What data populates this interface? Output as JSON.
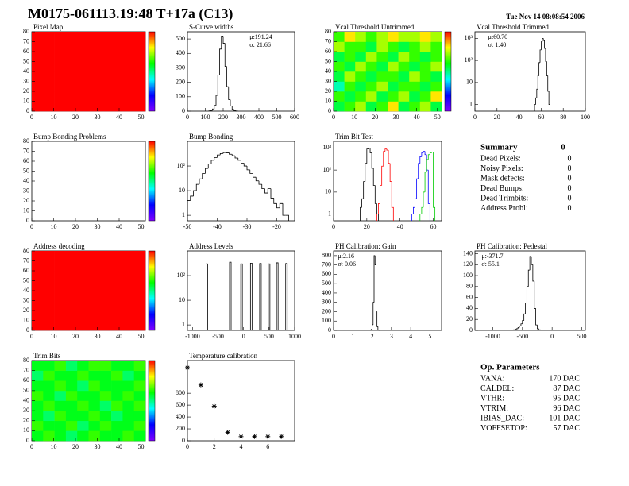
{
  "header": {
    "title": "M0175-061113.19:48 T+17a (C13)",
    "date": "Tue Nov 14 08:08:54 2006"
  },
  "chart_data": [
    {
      "type": "heatmap",
      "title": "Pixel Map",
      "xlim": [
        0,
        52
      ],
      "ylim": [
        0,
        80
      ],
      "xticks": [
        0,
        10,
        20,
        30,
        40,
        50
      ],
      "yticks": [
        0,
        10,
        20,
        30,
        40,
        50,
        60,
        70,
        80
      ],
      "zlim": [
        0,
        10
      ],
      "z": [
        [
          10,
          10,
          10,
          10,
          10
        ],
        [
          10,
          10,
          10,
          10,
          10
        ],
        [
          10,
          10,
          10,
          10,
          10
        ],
        [
          10,
          10,
          10,
          10,
          10
        ]
      ]
    },
    {
      "type": "hist",
      "title": "S-Curve widths",
      "xlim": [
        0,
        600
      ],
      "ylim": [
        0,
        550
      ],
      "xticks": [
        0,
        100,
        200,
        300,
        400,
        500,
        600
      ],
      "yticks": [
        0,
        100,
        200,
        300,
        400,
        500
      ],
      "stats": [
        "μ:191.24",
        "σ: 21.66"
      ],
      "series": [
        {
          "color": "#000000",
          "bins": [
            120,
            130,
            140,
            150,
            160,
            170,
            180,
            190,
            200,
            210,
            220,
            230,
            240,
            250,
            260,
            270,
            280
          ],
          "values": [
            2,
            5,
            15,
            40,
            110,
            250,
            430,
            520,
            470,
            310,
            170,
            80,
            35,
            12,
            4,
            1
          ]
        }
      ]
    },
    {
      "type": "heatmap",
      "title": "Vcal Threshold Untrimmed",
      "xlim": [
        0,
        52
      ],
      "ylim": [
        0,
        80
      ],
      "xticks": [
        0,
        10,
        20,
        30,
        40,
        50
      ],
      "yticks": [
        0,
        10,
        20,
        30,
        40,
        50,
        60,
        70,
        80
      ],
      "zlim": [
        0,
        10
      ],
      "z": [
        [
          5,
          6,
          7,
          5,
          6,
          8,
          5,
          6,
          7,
          5
        ],
        [
          6,
          5,
          6,
          7,
          5,
          6,
          7,
          5,
          6,
          8
        ],
        [
          4,
          6,
          5,
          6,
          7,
          5,
          6,
          6,
          5,
          6
        ],
        [
          5,
          7,
          6,
          5,
          6,
          6,
          5,
          7,
          6,
          5
        ],
        [
          6,
          5,
          7,
          6,
          5,
          7,
          6,
          5,
          6,
          7
        ],
        [
          5,
          6,
          5,
          7,
          6,
          5,
          7,
          6,
          5,
          6
        ],
        [
          7,
          6,
          6,
          5,
          7,
          6,
          5,
          6,
          7,
          6
        ],
        [
          6,
          8,
          7,
          6,
          7,
          8,
          7,
          7,
          8,
          7
        ]
      ]
    },
    {
      "type": "hist",
      "title": "Vcal Threshold Trimmed",
      "log": true,
      "xlim": [
        0,
        100
      ],
      "ylim": [
        0.5,
        2000
      ],
      "xticks": [
        0,
        20,
        40,
        60,
        80,
        100
      ],
      "yticks": [
        1,
        10,
        {
          "value": 100,
          "label": "10²"
        },
        {
          "value": 1000,
          "label": "10³"
        }
      ],
      "stats": [
        "μ:60.70",
        "σ: 1.40"
      ],
      "series": [
        {
          "color": "#000000",
          "bins": [
            54,
            55,
            56,
            57,
            58,
            59,
            60,
            61,
            62,
            63,
            64,
            65,
            66,
            67,
            68
          ],
          "values": [
            1,
            2,
            5,
            20,
            80,
            300,
            700,
            1000,
            800,
            350,
            90,
            20,
            4,
            1
          ]
        }
      ]
    },
    {
      "type": "heatmap",
      "title": "Bump Bonding Problems",
      "xlim": [
        0,
        52
      ],
      "ylim": [
        0,
        80
      ],
      "xticks": [
        0,
        10,
        20,
        30,
        40,
        50
      ],
      "yticks": [
        0,
        10,
        20,
        30,
        40,
        50,
        60,
        70,
        80
      ],
      "zlim": [
        0,
        10
      ],
      "z": [
        [
          0,
          0,
          0,
          0,
          0
        ],
        [
          0,
          0,
          0,
          0,
          0
        ],
        [
          0,
          0,
          0,
          0,
          0
        ],
        [
          0,
          0,
          0,
          0,
          0
        ]
      ]
    },
    {
      "type": "hist",
      "title": "Bump Bonding",
      "log": true,
      "xlim": [
        -50,
        -14
      ],
      "ylim": [
        0.6,
        1000
      ],
      "xticks": [
        -50,
        -40,
        -30,
        -20
      ],
      "yticks": [
        1,
        10,
        {
          "value": 100,
          "label": "10²"
        }
      ],
      "series": [
        {
          "color": "#000000",
          "bins": [
            -50,
            -49,
            -48,
            -47,
            -46,
            -45,
            -44,
            -43,
            -42,
            -41,
            -40,
            -39,
            -38,
            -37,
            -36,
            -35,
            -34,
            -33,
            -32,
            -31,
            -30,
            -29,
            -28,
            -27,
            -26,
            -25,
            -24,
            -23,
            -22,
            -21,
            -20,
            -19,
            -18,
            -17,
            -16
          ],
          "values": [
            4,
            6,
            10,
            18,
            30,
            50,
            80,
            120,
            170,
            220,
            280,
            320,
            350,
            340,
            300,
            260,
            210,
            170,
            130,
            100,
            70,
            50,
            35,
            25,
            18,
            12,
            8,
            12,
            5,
            3,
            2,
            3,
            1,
            1
          ]
        }
      ]
    },
    {
      "type": "hist",
      "title": "Trim Bit Test",
      "log": true,
      "xlim": [
        0,
        65
      ],
      "ylim": [
        0.5,
        2000
      ],
      "xticks": [
        0,
        20,
        40,
        60
      ],
      "yticks": [
        1,
        10,
        {
          "value": 100,
          "label": "10²"
        },
        {
          "value": 1000,
          "label": "10³"
        }
      ],
      "series": [
        {
          "color": "#000000",
          "bins": [
            16,
            17,
            18,
            19,
            20,
            21,
            22,
            23,
            24,
            25,
            26,
            27
          ],
          "values": [
            2,
            5,
            30,
            200,
            900,
            1000,
            600,
            120,
            20,
            3,
            1
          ]
        },
        {
          "color": "#ff0000",
          "bins": [
            26,
            27,
            28,
            29,
            30,
            31,
            32,
            33,
            34,
            35,
            36
          ],
          "values": [
            1,
            3,
            20,
            150,
            700,
            900,
            800,
            200,
            30,
            2
          ]
        },
        {
          "color": "#0000ff",
          "bins": [
            47,
            48,
            49,
            50,
            51,
            52,
            53,
            54,
            55,
            56,
            57,
            58
          ],
          "values": [
            1,
            2,
            5,
            40,
            200,
            400,
            600,
            700,
            500,
            100,
            3
          ]
        },
        {
          "color": "#00cc00",
          "bins": [
            52,
            53,
            54,
            55,
            56,
            57,
            58,
            59,
            60,
            61
          ],
          "values": [
            1,
            2,
            10,
            80,
            300,
            500,
            600,
            650,
            2
          ]
        }
      ]
    },
    {
      "type": "heatmap",
      "title": "Address decoding",
      "xlim": [
        0,
        52
      ],
      "ylim": [
        0,
        80
      ],
      "xticks": [
        0,
        10,
        20,
        30,
        40,
        50
      ],
      "yticks": [
        0,
        10,
        20,
        30,
        40,
        50,
        60,
        70,
        80
      ],
      "zlim": [
        0,
        10
      ],
      "z": [
        [
          10,
          10,
          10,
          10,
          10
        ],
        [
          10,
          10,
          10,
          10,
          10
        ],
        [
          10,
          10,
          10,
          10,
          10
        ],
        [
          10,
          10,
          10,
          10,
          10
        ]
      ]
    },
    {
      "type": "spike",
      "title": "Address Levels",
      "log": true,
      "xlim": [
        -1100,
        1000
      ],
      "ylim": [
        0.6,
        1000
      ],
      "xticks": [
        -1000,
        -500,
        0,
        500,
        1000
      ],
      "yticks": [
        1,
        10,
        {
          "value": 100,
          "label": "10²"
        }
      ],
      "x": [
        -720,
        -260,
        -40,
        150,
        330,
        500,
        660,
        840
      ],
      "values": [
        300,
        350,
        300,
        320,
        310,
        300,
        330,
        310
      ]
    },
    {
      "type": "hist",
      "title": "PH Calibration: Gain",
      "xlim": [
        0,
        5.6
      ],
      "ylim": [
        0,
        850
      ],
      "xticks": [
        0,
        1,
        2,
        3,
        4,
        5
      ],
      "yticks": [
        0,
        100,
        200,
        300,
        400,
        500,
        600,
        700,
        800
      ],
      "stats": [
        "μ:2.16",
        "σ: 0.06"
      ],
      "series": [
        {
          "color": "#000000",
          "bins": [
            1.9,
            1.95,
            2,
            2.05,
            2.1,
            2.15,
            2.2,
            2.25,
            2.3,
            2.35,
            2.4
          ],
          "values": [
            2,
            10,
            60,
            300,
            800,
            700,
            200,
            40,
            5,
            1
          ]
        }
      ]
    },
    {
      "type": "hist",
      "title": "PH Calibration: Pedestal",
      "xlim": [
        -1300,
        560
      ],
      "ylim": [
        0,
        145
      ],
      "xticks": [
        -1000,
        -500,
        0,
        500
      ],
      "yticks": [
        0,
        20,
        40,
        60,
        80,
        100,
        120,
        140
      ],
      "stats": [
        "μ:-371.7",
        "σ: 55.1"
      ],
      "series": [
        {
          "color": "#000000",
          "bins": [
            -650,
            -625,
            -600,
            -575,
            -550,
            -525,
            -500,
            -475,
            -450,
            -425,
            -400,
            -375,
            -350,
            -325,
            -300,
            -275,
            -250,
            -225,
            -200
          ],
          "values": [
            1,
            2,
            3,
            5,
            8,
            12,
            18,
            30,
            50,
            80,
            110,
            135,
            120,
            90,
            40,
            10,
            3,
            1
          ]
        }
      ]
    },
    {
      "type": "heatmap",
      "title": "Trim Bits",
      "xlim": [
        0,
        52
      ],
      "ylim": [
        0,
        80
      ],
      "xticks": [
        0,
        10,
        20,
        30,
        40,
        50
      ],
      "yticks": [
        0,
        10,
        20,
        30,
        40,
        50,
        60,
        70,
        80
      ],
      "zlim": [
        0,
        15
      ],
      "z": [
        [
          8,
          9,
          8,
          7,
          8,
          9,
          8,
          8,
          9,
          8
        ],
        [
          9,
          8,
          8,
          9,
          7,
          8,
          9,
          8,
          8,
          9
        ],
        [
          8,
          7,
          9,
          8,
          8,
          9,
          8,
          7,
          8,
          8
        ],
        [
          8,
          9,
          8,
          8,
          9,
          8,
          7,
          9,
          8,
          9
        ],
        [
          9,
          8,
          7,
          9,
          8,
          8,
          9,
          8,
          9,
          8
        ],
        [
          8,
          8,
          9,
          8,
          7,
          9,
          8,
          8,
          8,
          9
        ],
        [
          7,
          9,
          8,
          8,
          9,
          8,
          8,
          9,
          7,
          8
        ],
        [
          8,
          8,
          9,
          7,
          8,
          9,
          9,
          8,
          8,
          9
        ]
      ]
    },
    {
      "type": "scatter",
      "title": "Temperature calibration",
      "xlim": [
        0,
        8
      ],
      "ylim": [
        0,
        1350
      ],
      "xticks": [
        0,
        2,
        4,
        6
      ],
      "yticks": [
        0,
        200,
        400,
        600,
        800
      ],
      "x": [
        0,
        1,
        2,
        3,
        4,
        5,
        6,
        7
      ],
      "values": [
        1230,
        940,
        580,
        140,
        70,
        70,
        70,
        70
      ]
    }
  ],
  "summary": {
    "title": "Summary",
    "count": "0",
    "rows": [
      [
        "Dead Pixels:",
        "0"
      ],
      [
        "Noisy Pixels:",
        "0"
      ],
      [
        "Mask defects:",
        "0"
      ],
      [
        "Dead Bumps:",
        "0"
      ],
      [
        "Dead Trimbits:",
        "0"
      ],
      [
        "Address Probl:",
        "0"
      ]
    ]
  },
  "op_parameters": {
    "title": "Op. Parameters",
    "rows": [
      [
        "VANA:",
        "170 DAC"
      ],
      [
        "CALDEL:",
        "87 DAC"
      ],
      [
        "VTHR:",
        "95 DAC"
      ],
      [
        "VTRIM:",
        "96 DAC"
      ],
      [
        "IBIAS_DAC:",
        "101 DAC"
      ],
      [
        "VOFFSETOP:",
        "57 DAC"
      ]
    ]
  }
}
